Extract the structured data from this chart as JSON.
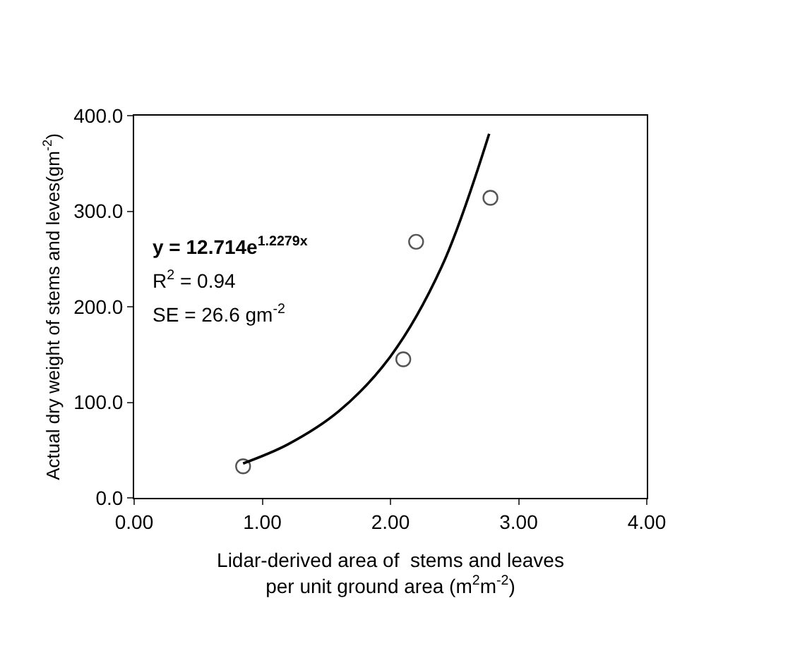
{
  "chart_data": {
    "type": "scatter",
    "xlabel": "Lidar-derived area of  stems and leaves\nper unit ground area (m$^{2}$m$^{-2}$)",
    "ylabel": "Actual dry weight of stems and leves(gm$^{-2}$)",
    "series": [
      {
        "color": "#555555",
        "marker": "circle",
        "x": [
          0.85,
          2.1,
          2.2,
          2.78
        ],
        "values": [
          33,
          145,
          268,
          314
        ]
      },
      {
        "type": "line",
        "color": "#000000",
        "marker": "none",
        "line_style": "solid",
        "x": [
          0.85,
          1.2,
          1.6,
          2.0,
          2.4,
          2.77
        ],
        "values": [
          36,
          56,
          91,
          148,
          242,
          381
        ]
      }
    ],
    "annotations": [
      "y = 12.714e$^{1.2279x}$",
      "R$^{2}$ = 0.94",
      "SE = 26.6 gm$^{-2}$"
    ],
    "xlim": [
      0,
      4
    ],
    "xticks": [
      {
        "value": 0,
        "label": "0.00"
      },
      {
        "value": 1,
        "label": "1.00"
      },
      {
        "value": 2,
        "label": "2.00"
      },
      {
        "value": 3,
        "label": "3.00"
      },
      {
        "value": 4,
        "label": "4.00"
      }
    ],
    "ylim": [
      0,
      400
    ],
    "yticks": [
      {
        "value": 0,
        "label": "0.0"
      },
      {
        "value": 100,
        "label": "100.0"
      },
      {
        "value": 200,
        "label": "200.0"
      },
      {
        "value": 300,
        "label": "300.0"
      },
      {
        "value": 400,
        "label": "400.0"
      }
    ]
  }
}
